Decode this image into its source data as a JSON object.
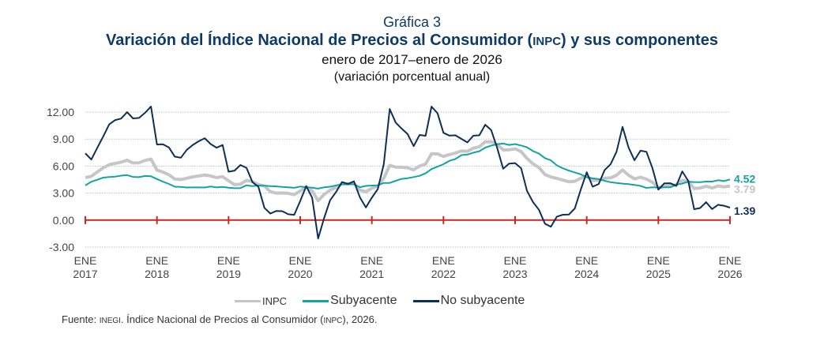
{
  "header": {
    "figure_number": "Gráfica 3",
    "title_part1": "Variación del Índice Nacional de Precios al Consumidor (",
    "title_abbrev": "INPC",
    "title_part2": ") y sus componentes",
    "subtitle": "enero de 2017–enero de 2026",
    "units": "(variación porcentual anual)"
  },
  "legend": {
    "items": [
      {
        "label": "INPC",
        "color": "#c6c6c6"
      },
      {
        "label": "Subyacente",
        "color": "#12a3a3"
      },
      {
        "label": "No subyacente",
        "color": "#0d2f57"
      }
    ]
  },
  "source": {
    "prefix": "Fuente: ",
    "org": "INEGI",
    "mid": ". Índice Nacional de Precios al Consumidor (",
    "abbrev": "INPC",
    "suffix": "), 2026."
  },
  "chart_data": {
    "type": "line",
    "title": "Variación del Índice Nacional de Precios al Consumidor (INPC) y sus componentes",
    "subtitle": "enero de 2017–enero de 2026",
    "ylabel": "(variación porcentual anual)",
    "xlabel": "",
    "ylim": [
      -3,
      12
    ],
    "yticks": [
      "12.00",
      "9.00",
      "6.00",
      "3.00",
      "0.00",
      "-3.00"
    ],
    "ytick_values": [
      12,
      9,
      6,
      3,
      0,
      -3
    ],
    "xticks": [
      {
        "top": "ENE",
        "bottom": "2017"
      },
      {
        "top": "ENE",
        "bottom": "2018"
      },
      {
        "top": "ENE",
        "bottom": "2019"
      },
      {
        "top": "ENE",
        "bottom": "2020"
      },
      {
        "top": "ENE",
        "bottom": "2021"
      },
      {
        "top": "ENE",
        "bottom": "2022"
      },
      {
        "top": "ENE",
        "bottom": "2023"
      },
      {
        "top": "ENE",
        "bottom": "2024"
      },
      {
        "top": "ENE",
        "bottom": "2025"
      },
      {
        "top": "ENE",
        "bottom": "2026"
      }
    ],
    "x_start": "2017-01",
    "x_end": "2026-01",
    "frequency": "monthly",
    "grid": "horizontal dotted",
    "legend_position": "bottom",
    "zero_line_color": "#c8281e",
    "series": [
      {
        "name": "INPC",
        "color": "#c6c6c6",
        "end_label": "3.79",
        "values": [
          4.72,
          4.86,
          5.35,
          5.82,
          6.16,
          6.31,
          6.44,
          6.66,
          6.35,
          6.37,
          6.63,
          6.77,
          5.55,
          5.34,
          5.04,
          4.55,
          4.51,
          4.65,
          4.81,
          4.9,
          5.02,
          4.9,
          4.72,
          4.83,
          4.37,
          3.94,
          4.0,
          4.41,
          4.28,
          3.95,
          3.78,
          3.16,
          3.0,
          3.02,
          2.97,
          2.83,
          3.24,
          3.7,
          3.25,
          2.15,
          2.84,
          3.33,
          3.62,
          4.05,
          4.01,
          4.09,
          3.33,
          3.15,
          3.54,
          3.76,
          4.67,
          6.08,
          5.89,
          5.88,
          5.81,
          5.59,
          6.0,
          6.24,
          7.37,
          7.36,
          7.07,
          7.28,
          7.45,
          7.68,
          7.65,
          7.99,
          8.15,
          8.7,
          8.7,
          8.41,
          7.8,
          7.82,
          7.91,
          7.62,
          6.85,
          6.25,
          5.84,
          5.06,
          4.79,
          4.64,
          4.45,
          4.26,
          4.32,
          4.66,
          4.88,
          4.4,
          4.42,
          4.65,
          4.69,
          4.98,
          5.57,
          4.99,
          4.58,
          4.76,
          4.55,
          4.21,
          3.59,
          3.77,
          3.8,
          3.93,
          4.42,
          4.32,
          3.51,
          3.57,
          3.76,
          3.57,
          3.8,
          3.69,
          3.79
        ]
      },
      {
        "name": "Subyacente",
        "color": "#12a3a3",
        "end_label": "4.52",
        "values": [
          3.85,
          4.26,
          4.48,
          4.72,
          4.78,
          4.83,
          4.94,
          5.0,
          4.8,
          4.77,
          4.9,
          4.87,
          4.56,
          4.27,
          4.02,
          3.71,
          3.69,
          3.62,
          3.63,
          3.63,
          3.62,
          3.73,
          3.63,
          3.68,
          3.6,
          3.54,
          3.55,
          3.87,
          3.77,
          3.85,
          3.82,
          3.78,
          3.75,
          3.68,
          3.65,
          3.59,
          3.73,
          3.66,
          3.6,
          3.5,
          3.64,
          3.71,
          3.85,
          3.97,
          4.0,
          3.98,
          3.66,
          3.8,
          3.84,
          3.87,
          4.12,
          4.13,
          4.37,
          4.58,
          4.66,
          4.78,
          4.92,
          5.19,
          5.67,
          5.94,
          6.21,
          6.59,
          6.78,
          7.22,
          7.28,
          7.49,
          7.65,
          8.05,
          8.28,
          8.42,
          8.51,
          8.35,
          8.45,
          8.29,
          8.09,
          7.67,
          7.39,
          6.89,
          6.64,
          6.08,
          5.76,
          5.5,
          5.3,
          5.09,
          4.76,
          4.64,
          4.55,
          4.37,
          4.21,
          4.13,
          4.05,
          4.0,
          3.91,
          3.8,
          3.58,
          3.65,
          3.61,
          3.65,
          3.64,
          3.93,
          4.06,
          4.26,
          4.23,
          4.21,
          4.28,
          4.28,
          4.43,
          4.33,
          4.52
        ]
      },
      {
        "name": "No subyacente",
        "color": "#0d2f57",
        "end_label": "1.39",
        "values": [
          7.42,
          6.73,
          8.03,
          9.3,
          10.63,
          11.11,
          11.28,
          11.99,
          11.3,
          11.35,
          11.92,
          12.62,
          8.4,
          8.43,
          8.07,
          7.05,
          6.93,
          7.81,
          8.35,
          8.76,
          9.1,
          8.45,
          8.04,
          8.34,
          5.38,
          5.5,
          6.12,
          5.81,
          4.21,
          3.7,
          1.36,
          0.73,
          1.02,
          0.99,
          0.65,
          0.59,
          2.12,
          3.77,
          2.49,
          -2.04,
          0.21,
          2.2,
          3.11,
          4.23,
          4.03,
          4.31,
          2.53,
          1.4,
          2.5,
          3.45,
          6.23,
          12.34,
          10.83,
          10.17,
          9.55,
          8.22,
          9.46,
          9.37,
          12.61,
          11.88,
          9.7,
          9.39,
          9.42,
          9.03,
          8.63,
          9.38,
          9.42,
          10.6,
          9.99,
          8.03,
          5.71,
          6.27,
          6.33,
          5.77,
          3.24,
          2.0,
          1.14,
          -0.4,
          -0.74,
          0.39,
          0.6,
          0.61,
          1.3,
          3.39,
          5.32,
          3.71,
          4.01,
          5.56,
          6.22,
          7.6,
          10.36,
          8.07,
          6.65,
          7.71,
          7.6,
          5.79,
          3.39,
          4.09,
          4.1,
          3.81,
          5.41,
          4.37,
          1.21,
          1.34,
          1.99,
          1.23,
          1.7,
          1.6,
          1.39
        ]
      }
    ]
  }
}
